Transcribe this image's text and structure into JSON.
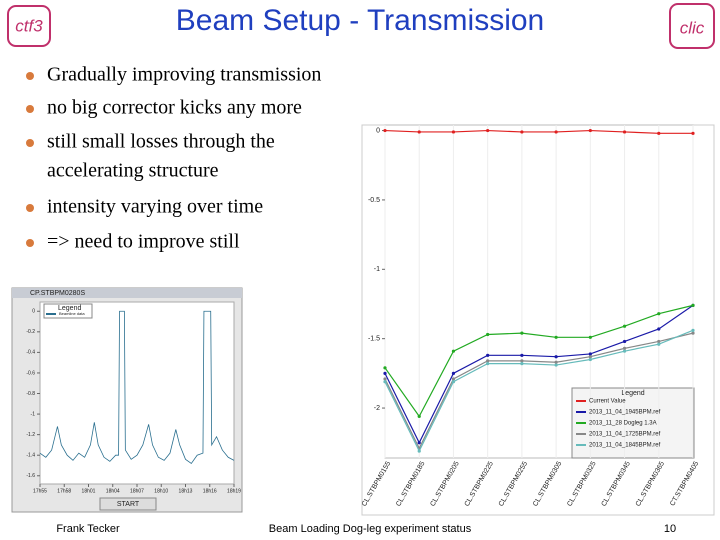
{
  "header": {
    "title": "Beam Setup - Transmission",
    "logo_left": "ctf3",
    "logo_right": "clic"
  },
  "bullets": [
    "Gradually improving transmission",
    "no big corrector kicks any more",
    "still small losses through the",
    "accelerating structure",
    "intensity varying over time",
    "=> need to improve still"
  ],
  "footer": {
    "author": "Frank Tecker",
    "talk": "Beam Loading Dog-leg experiment status",
    "page": "10"
  },
  "chart_data": [
    {
      "type": "line",
      "window_title": "CP.STBPM0280S",
      "legend_title": "Legend",
      "button": "START",
      "xlim": [
        0,
        100
      ],
      "xticks": [
        {
          "value": 0,
          "label": "17h55"
        },
        {
          "value": 12.5,
          "label": "17h58"
        },
        {
          "value": 25,
          "label": "18h01"
        },
        {
          "value": 37.5,
          "label": "18h04"
        },
        {
          "value": 50,
          "label": "18h07"
        },
        {
          "value": 62.5,
          "label": "18h10"
        },
        {
          "value": 75,
          "label": "18h13"
        },
        {
          "value": 87.5,
          "label": "18h16"
        },
        {
          "value": 100,
          "label": "18h19"
        }
      ],
      "ylim": [
        -1.68,
        0.09
      ],
      "yticks": [
        0,
        -0.2,
        -0.4,
        -0.6,
        -0.8,
        -1,
        -1.2,
        -1.4,
        -1.6
      ],
      "x": [
        0,
        3,
        6,
        9,
        11,
        14,
        17,
        20,
        23,
        26,
        28,
        30,
        33,
        36,
        39,
        40.5,
        41,
        43.5,
        44,
        47,
        50,
        53,
        56,
        58,
        61,
        64,
        67,
        70,
        72,
        75,
        78,
        81,
        84,
        84.5,
        88,
        88.5,
        91,
        94,
        97,
        100
      ],
      "series": [
        {
          "name": "Beamline data",
          "color": "#2a6f8f",
          "values": [
            -1.38,
            -1.42,
            -1.35,
            -1.12,
            -1.3,
            -1.4,
            -1.45,
            -1.38,
            -1.42,
            -1.3,
            -1.08,
            -1.3,
            -1.42,
            -1.46,
            -1.4,
            -1.4,
            0,
            0,
            -1.35,
            -1.44,
            -1.4,
            -1.3,
            -1.1,
            -1.3,
            -1.42,
            -1.45,
            -1.38,
            -1.15,
            -1.3,
            -1.44,
            -1.48,
            -1.4,
            -1.38,
            0,
            0,
            -1.3,
            -1.22,
            -1.35,
            -1.42,
            -1.45
          ]
        }
      ]
    },
    {
      "type": "line",
      "legend_title": "Legend",
      "categories": [
        "CL.STBPM0155",
        "CL.STBPM0185",
        "CL.STBPM0205",
        "CL.STBPM0225",
        "CL.STBPM0255",
        "CL.STBPM0305",
        "CL.STBPM0325",
        "CL.STBPM0345",
        "CL.STBPM0365",
        "CT.STBPM0405"
      ],
      "ylim": [
        -2.36,
        0.04
      ],
      "yticks": [
        0,
        -0.5,
        -1,
        -1.5,
        -2
      ],
      "series": [
        {
          "name": "Current Value",
          "color": "#e02020",
          "values": [
            0,
            -0.01,
            -0.01,
            0,
            -0.01,
            -0.01,
            0,
            -0.01,
            -0.02,
            -0.02
          ]
        },
        {
          "name": "2013_11_04_1945BPM.ref",
          "color": "#1a1aa8",
          "values": [
            -1.75,
            -2.25,
            -1.75,
            -1.62,
            -1.62,
            -1.63,
            -1.61,
            -1.52,
            -1.43,
            -1.26
          ]
        },
        {
          "name": "2013_11_28 Dogleg 1.3A",
          "color": "#22aa22",
          "values": [
            -1.71,
            -2.06,
            -1.59,
            -1.47,
            -1.46,
            -1.49,
            -1.49,
            -1.41,
            -1.32,
            -1.26
          ]
        },
        {
          "name": "2013_11_04_1725BPM.ref",
          "color": "#888888",
          "values": [
            -1.79,
            -2.29,
            -1.79,
            -1.66,
            -1.66,
            -1.67,
            -1.63,
            -1.57,
            -1.52,
            -1.46
          ]
        },
        {
          "name": "2013_11_04_1845BPM.ref",
          "color": "#66bbbb",
          "values": [
            -1.81,
            -2.31,
            -1.81,
            -1.68,
            -1.68,
            -1.69,
            -1.65,
            -1.59,
            -1.54,
            -1.44
          ]
        }
      ]
    }
  ]
}
